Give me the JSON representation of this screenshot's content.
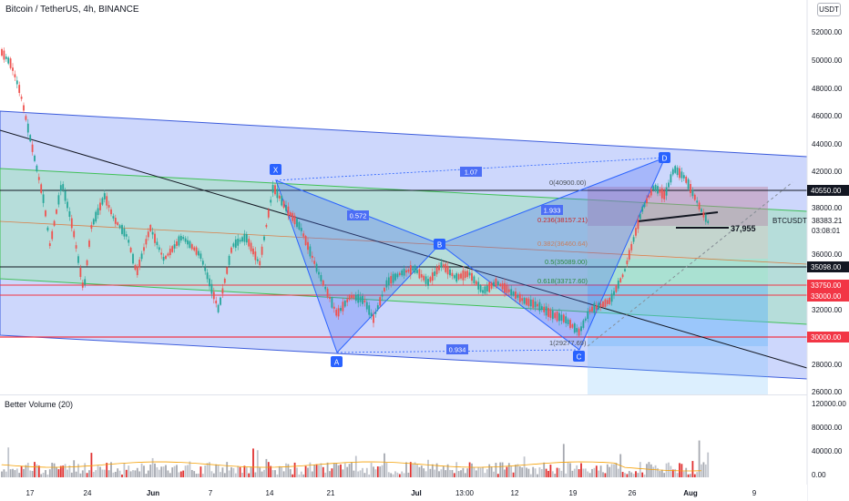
{
  "header": {
    "title": "Bitcoin / TetherUS, 4h, BINANCE",
    "currency_button": "USDT"
  },
  "price_axis": {
    "ticks": [
      "52000.00",
      "50000.00",
      "48000.00",
      "46000.00",
      "44000.00",
      "42000.00",
      "38000.00",
      "36000.00",
      "32000.00",
      "28000.00",
      "26000.00"
    ],
    "labels": [
      {
        "text": "40550.00",
        "color": "#131722"
      },
      {
        "text": "35098.00",
        "color": "#131722"
      },
      {
        "text": "33750.00",
        "color": "#f23645"
      },
      {
        "text": "33000.00",
        "color": "#f23645"
      },
      {
        "text": "30000.00",
        "color": "#f23645"
      }
    ],
    "current": {
      "symbol": "BTCUSDT",
      "price": "38383.21",
      "countdown": "03:08:01"
    }
  },
  "time_axis": {
    "ticks": [
      "17",
      "24",
      "Jun",
      "7",
      "14",
      "21",
      "Jul",
      "13:00",
      "12",
      "19",
      "26",
      "Aug",
      "9"
    ]
  },
  "volume_pane": {
    "title": "Better Volume (20)",
    "ticks": [
      "120000.00",
      "80000.00",
      "40000.00",
      "0.00"
    ]
  },
  "pattern": {
    "points": [
      "X",
      "A",
      "B",
      "C",
      "D"
    ],
    "ratios": [
      "1.07",
      "0.572",
      "0.934",
      "1.933"
    ]
  },
  "fibonacci": {
    "levels": [
      "0(40900.00)",
      "0.236(38157.21)",
      "0.382(36460.64)",
      "0.5(35089.00)",
      "0.618(33717.60)",
      "1(29277.69)"
    ]
  },
  "annotation": {
    "support_label": "37,955"
  },
  "colors": {
    "up": "#26a69a",
    "down": "#ef5350",
    "channel_fill": "#5b7ff0",
    "green_fill": "#7fd08a",
    "red_line": "#f23645",
    "pattern_blue": "#2962ff"
  }
}
